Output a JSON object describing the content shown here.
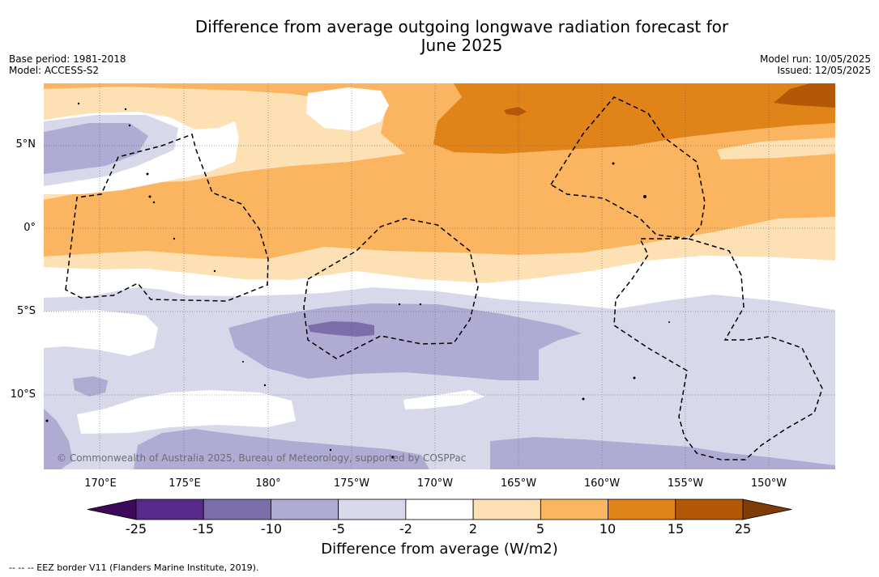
{
  "header": {
    "title_line1": "Difference from average outgoing longwave radiation forecast for",
    "title_line2": "June 2025",
    "base_period": "Base period: 1981-2018",
    "model": "Model: ACCESS-S2",
    "model_run": "Model run: 10/05/2025",
    "issued": "Issued: 12/05/2025"
  },
  "map": {
    "lat_labels": [
      "5°N",
      "0°",
      "5°S",
      "10°S"
    ],
    "lon_labels": [
      "170°E",
      "175°E",
      "180°",
      "175°W",
      "170°W",
      "165°W",
      "160°W",
      "155°W",
      "150°W"
    ],
    "copyright": "© Commonwealth of Australia 2025, Bureau of Meteorology, supported by COSPPac"
  },
  "colorbar": {
    "ticks": [
      "-25",
      "-15",
      "-10",
      "-5",
      "-2",
      "2",
      "5",
      "10",
      "15",
      "25"
    ],
    "colors": [
      "#3d0a5b",
      "#56298a",
      "#7c6dab",
      "#b0abd3",
      "#d8d8eb",
      "#ffffff",
      "#fde0b4",
      "#fbb560",
      "#e0841a",
      "#b35806",
      "#7f3b08"
    ],
    "title": "Difference from average (W/m2)"
  },
  "footnote": "--  --  -- EEZ border V11 (Flanders Marine Institute, 2019)."
}
